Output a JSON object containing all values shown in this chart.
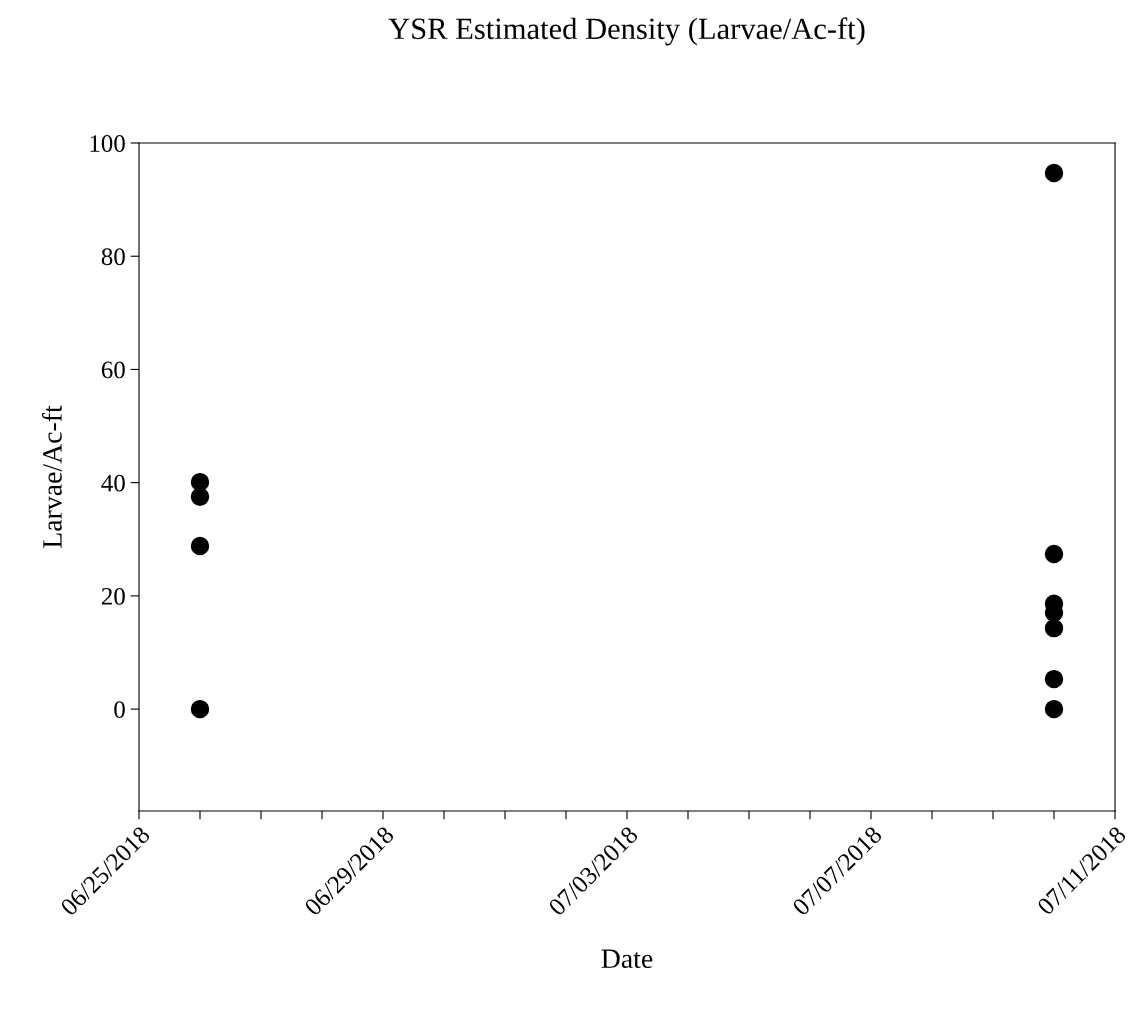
{
  "chart_data": {
    "type": "scatter",
    "title": "YSR Estimated Density (Larvae/Ac-ft)",
    "xlabel": "Date",
    "ylabel": "Larvae/Ac-ft",
    "series": [
      {
        "color": "#000000",
        "x": [
          "2018-06-26",
          "2018-06-26",
          "2018-06-26",
          "2018-06-26",
          "2018-07-10",
          "2018-07-10",
          "2018-07-10",
          "2018-07-10",
          "2018-07-10",
          "2018-07-10",
          "2018-07-10"
        ],
        "values": [
          40.1,
          37.5,
          28.8,
          0,
          94.7,
          27.4,
          18.6,
          17.0,
          14.3,
          5.3,
          0
        ]
      }
    ],
    "marker": "circle",
    "grid": false,
    "legend": false,
    "xlim": [
      "2018-06-25",
      "2018-07-11"
    ],
    "xticks": [
      {
        "value": "2018-06-25",
        "label": "06/25/2018"
      },
      {
        "value": "2018-06-26",
        "label": null
      },
      {
        "value": "2018-06-27",
        "label": null
      },
      {
        "value": "2018-06-28",
        "label": null
      },
      {
        "value": "2018-06-29",
        "label": "06/29/2018"
      },
      {
        "value": "2018-06-30",
        "label": null
      },
      {
        "value": "2018-07-01",
        "label": null
      },
      {
        "value": "2018-07-02",
        "label": null
      },
      {
        "value": "2018-07-03",
        "label": "07/03/2018"
      },
      {
        "value": "2018-07-04",
        "label": null
      },
      {
        "value": "2018-07-05",
        "label": null
      },
      {
        "value": "2018-07-06",
        "label": null
      },
      {
        "value": "2018-07-07",
        "label": "07/07/2018"
      },
      {
        "value": "2018-07-08",
        "label": null
      },
      {
        "value": "2018-07-09",
        "label": null
      },
      {
        "value": "2018-07-10",
        "label": null
      },
      {
        "value": "2018-07-11",
        "label": "07/11/2018"
      }
    ],
    "ylim": [
      -18,
      100
    ],
    "yticks": [
      0,
      20,
      40,
      60,
      80,
      100
    ]
  }
}
